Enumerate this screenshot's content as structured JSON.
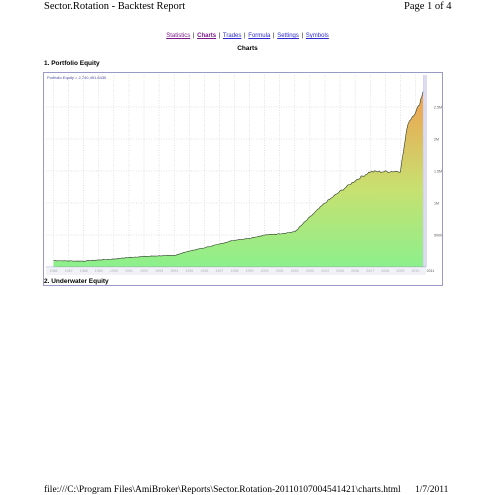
{
  "header": {
    "title": "Sector.Rotation - Backtest Report",
    "page": "Page 1 of 4"
  },
  "nav": {
    "items": [
      {
        "label": "Statistics"
      },
      {
        "label": "Charts"
      },
      {
        "label": "Trades"
      },
      {
        "label": "Formula"
      },
      {
        "label": "Settings"
      },
      {
        "label": "Symbols"
      }
    ],
    "separator": "|"
  },
  "heading": "Charts",
  "sections": [
    {
      "title": "1. Portfolio Equity"
    },
    {
      "title": "2. Underwater Equity"
    }
  ],
  "chart_data": {
    "type": "area",
    "legend_text": "Portfolio Equity = 2,740,491.6430",
    "x": [
      "1986",
      "1987",
      "1988",
      "1989",
      "1990",
      "1991",
      "1992",
      "1993",
      "1994",
      "1995",
      "1996",
      "1997",
      "1998",
      "1999",
      "2000",
      "2001",
      "2002",
      "2003",
      "2004",
      "2005",
      "2006",
      "2007",
      "2008",
      "2009",
      "2010",
      "2011"
    ],
    "x_ticks": [
      "1986",
      "1987",
      "1988",
      "1989",
      "1990",
      "1991",
      "1992",
      "1993",
      "1994",
      "1995",
      "1996",
      "1997",
      "1998",
      "1999",
      "2000",
      "2001",
      "2002",
      "2003",
      "2004",
      "2005",
      "2006",
      "2007",
      "2008",
      "2009",
      "2010",
      "2011"
    ],
    "y_ticks": [
      "500000",
      "1M",
      "1.5M",
      "2M",
      "2.5M"
    ],
    "ylim": [
      0,
      3000000
    ],
    "grid": true,
    "colors": {
      "area_low": "#8cf08c",
      "area_high": "#f0a050",
      "line": "#2a3a2a"
    },
    "series": [
      {
        "name": "Portfolio Equity",
        "values": [
          [
            1986,
            100000
          ],
          [
            1987,
            95000
          ],
          [
            1988,
            92000
          ],
          [
            1989,
            110000
          ],
          [
            1990,
            125000
          ],
          [
            1991,
            150000
          ],
          [
            1992,
            165000
          ],
          [
            1993,
            175000
          ],
          [
            1994,
            180000
          ],
          [
            1995,
            250000
          ],
          [
            1996,
            300000
          ],
          [
            1997,
            360000
          ],
          [
            1998,
            420000
          ],
          [
            1999,
            450000
          ],
          [
            2000,
            500000
          ],
          [
            2001,
            520000
          ],
          [
            2002,
            550000
          ],
          [
            2003,
            780000
          ],
          [
            2004,
            1000000
          ],
          [
            2005,
            1180000
          ],
          [
            2006,
            1350000
          ],
          [
            2007,
            1490000
          ],
          [
            2008,
            1490000
          ],
          [
            2009,
            1500000
          ],
          [
            2009.5,
            2250000
          ],
          [
            2010.2,
            2500000
          ],
          [
            2010.5,
            2740000
          ]
        ]
      }
    ]
  },
  "footer": {
    "path": "file:///C:\\Program Files\\AmiBroker\\Reports\\Sector.Rotation-20110107004541421\\charts.html",
    "date": "1/7/2011"
  }
}
